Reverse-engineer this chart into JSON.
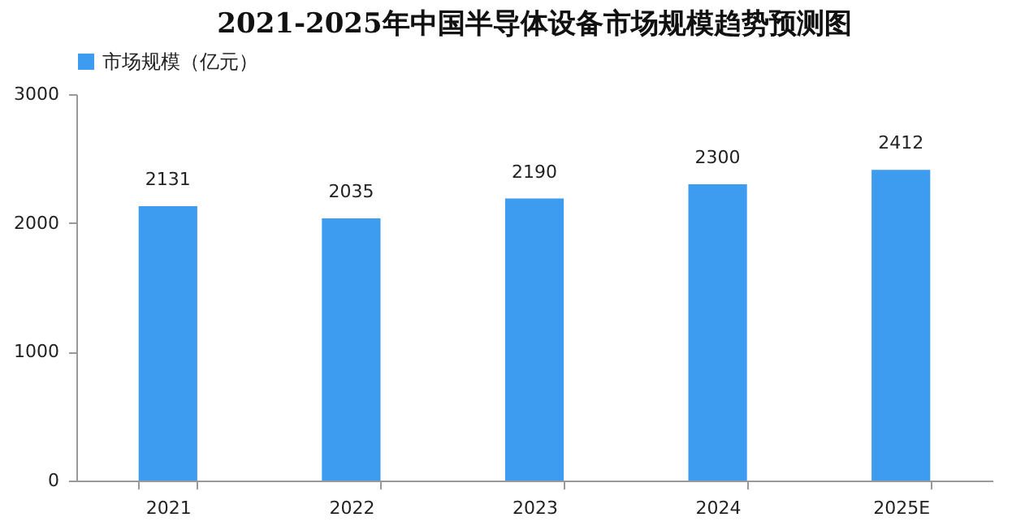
{
  "chart_data": {
    "type": "bar",
    "title": "2021-2025年中国半导体设备市场规模趋势预测图",
    "categories": [
      "2021",
      "2022",
      "2023",
      "2024",
      "2025E"
    ],
    "series": [
      {
        "name": "市场规模（亿元）",
        "color": "#3d9cf0",
        "values": [
          2131,
          2035,
          2190,
          2300,
          2412
        ]
      }
    ],
    "ylim": [
      0,
      3000
    ],
    "yticks": [
      0,
      1000,
      2000,
      3000
    ],
    "grid": false,
    "legend": "top",
    "data_labels": true
  }
}
